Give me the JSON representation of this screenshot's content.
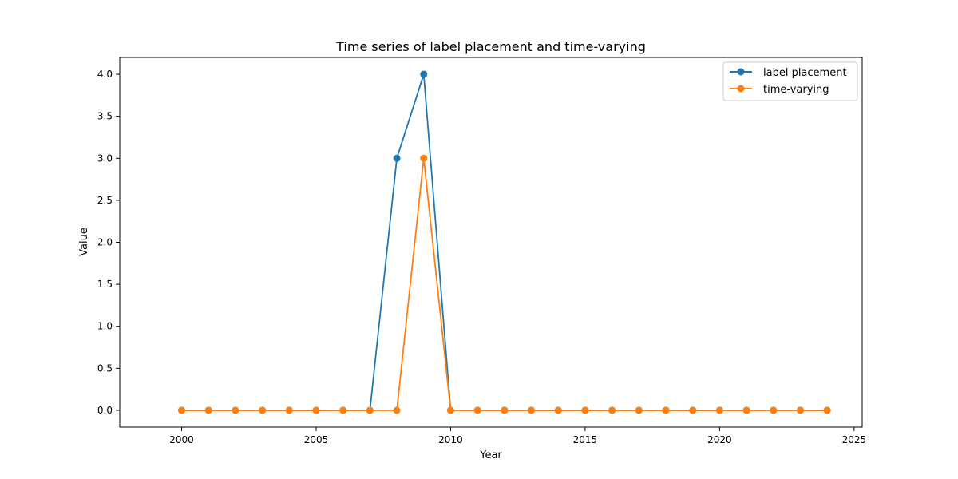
{
  "chart_data": {
    "type": "line",
    "title": "Time series of label placement and time-varying",
    "xlabel": "Year",
    "ylabel": "Value",
    "x": [
      2000,
      2001,
      2002,
      2003,
      2004,
      2005,
      2006,
      2007,
      2008,
      2009,
      2010,
      2011,
      2012,
      2013,
      2014,
      2015,
      2016,
      2017,
      2018,
      2019,
      2020,
      2021,
      2022,
      2023,
      2024
    ],
    "xlim": [
      1997.7,
      2025.3
    ],
    "ylim": [
      -0.2,
      4.2
    ],
    "x_ticks": [
      2000,
      2005,
      2010,
      2015,
      2020,
      2025
    ],
    "x_tick_labels": [
      "2000",
      "2005",
      "2010",
      "2015",
      "2020",
      "2025"
    ],
    "y_ticks": [
      0,
      0.5,
      1,
      1.5,
      2,
      2.5,
      3,
      3.5,
      4
    ],
    "y_tick_labels": [
      "0.0",
      "0.5",
      "1.0",
      "1.5",
      "2.0",
      "2.5",
      "3.0",
      "3.5",
      "4.0"
    ],
    "grid": false,
    "legend_position": "top-right",
    "series": [
      {
        "name": "label placement",
        "color": "#1f77b4",
        "values": [
          0,
          0,
          0,
          0,
          0,
          0,
          0,
          0,
          3,
          4,
          0,
          0,
          0,
          0,
          0,
          0,
          0,
          0,
          0,
          0,
          0,
          0,
          0,
          0,
          0
        ]
      },
      {
        "name": "time-varying",
        "color": "#ff7f0e",
        "values": [
          0,
          0,
          0,
          0,
          0,
          0,
          0,
          0,
          0,
          3,
          0,
          0,
          0,
          0,
          0,
          0,
          0,
          0,
          0,
          0,
          0,
          0,
          0,
          0,
          0
        ]
      }
    ]
  }
}
